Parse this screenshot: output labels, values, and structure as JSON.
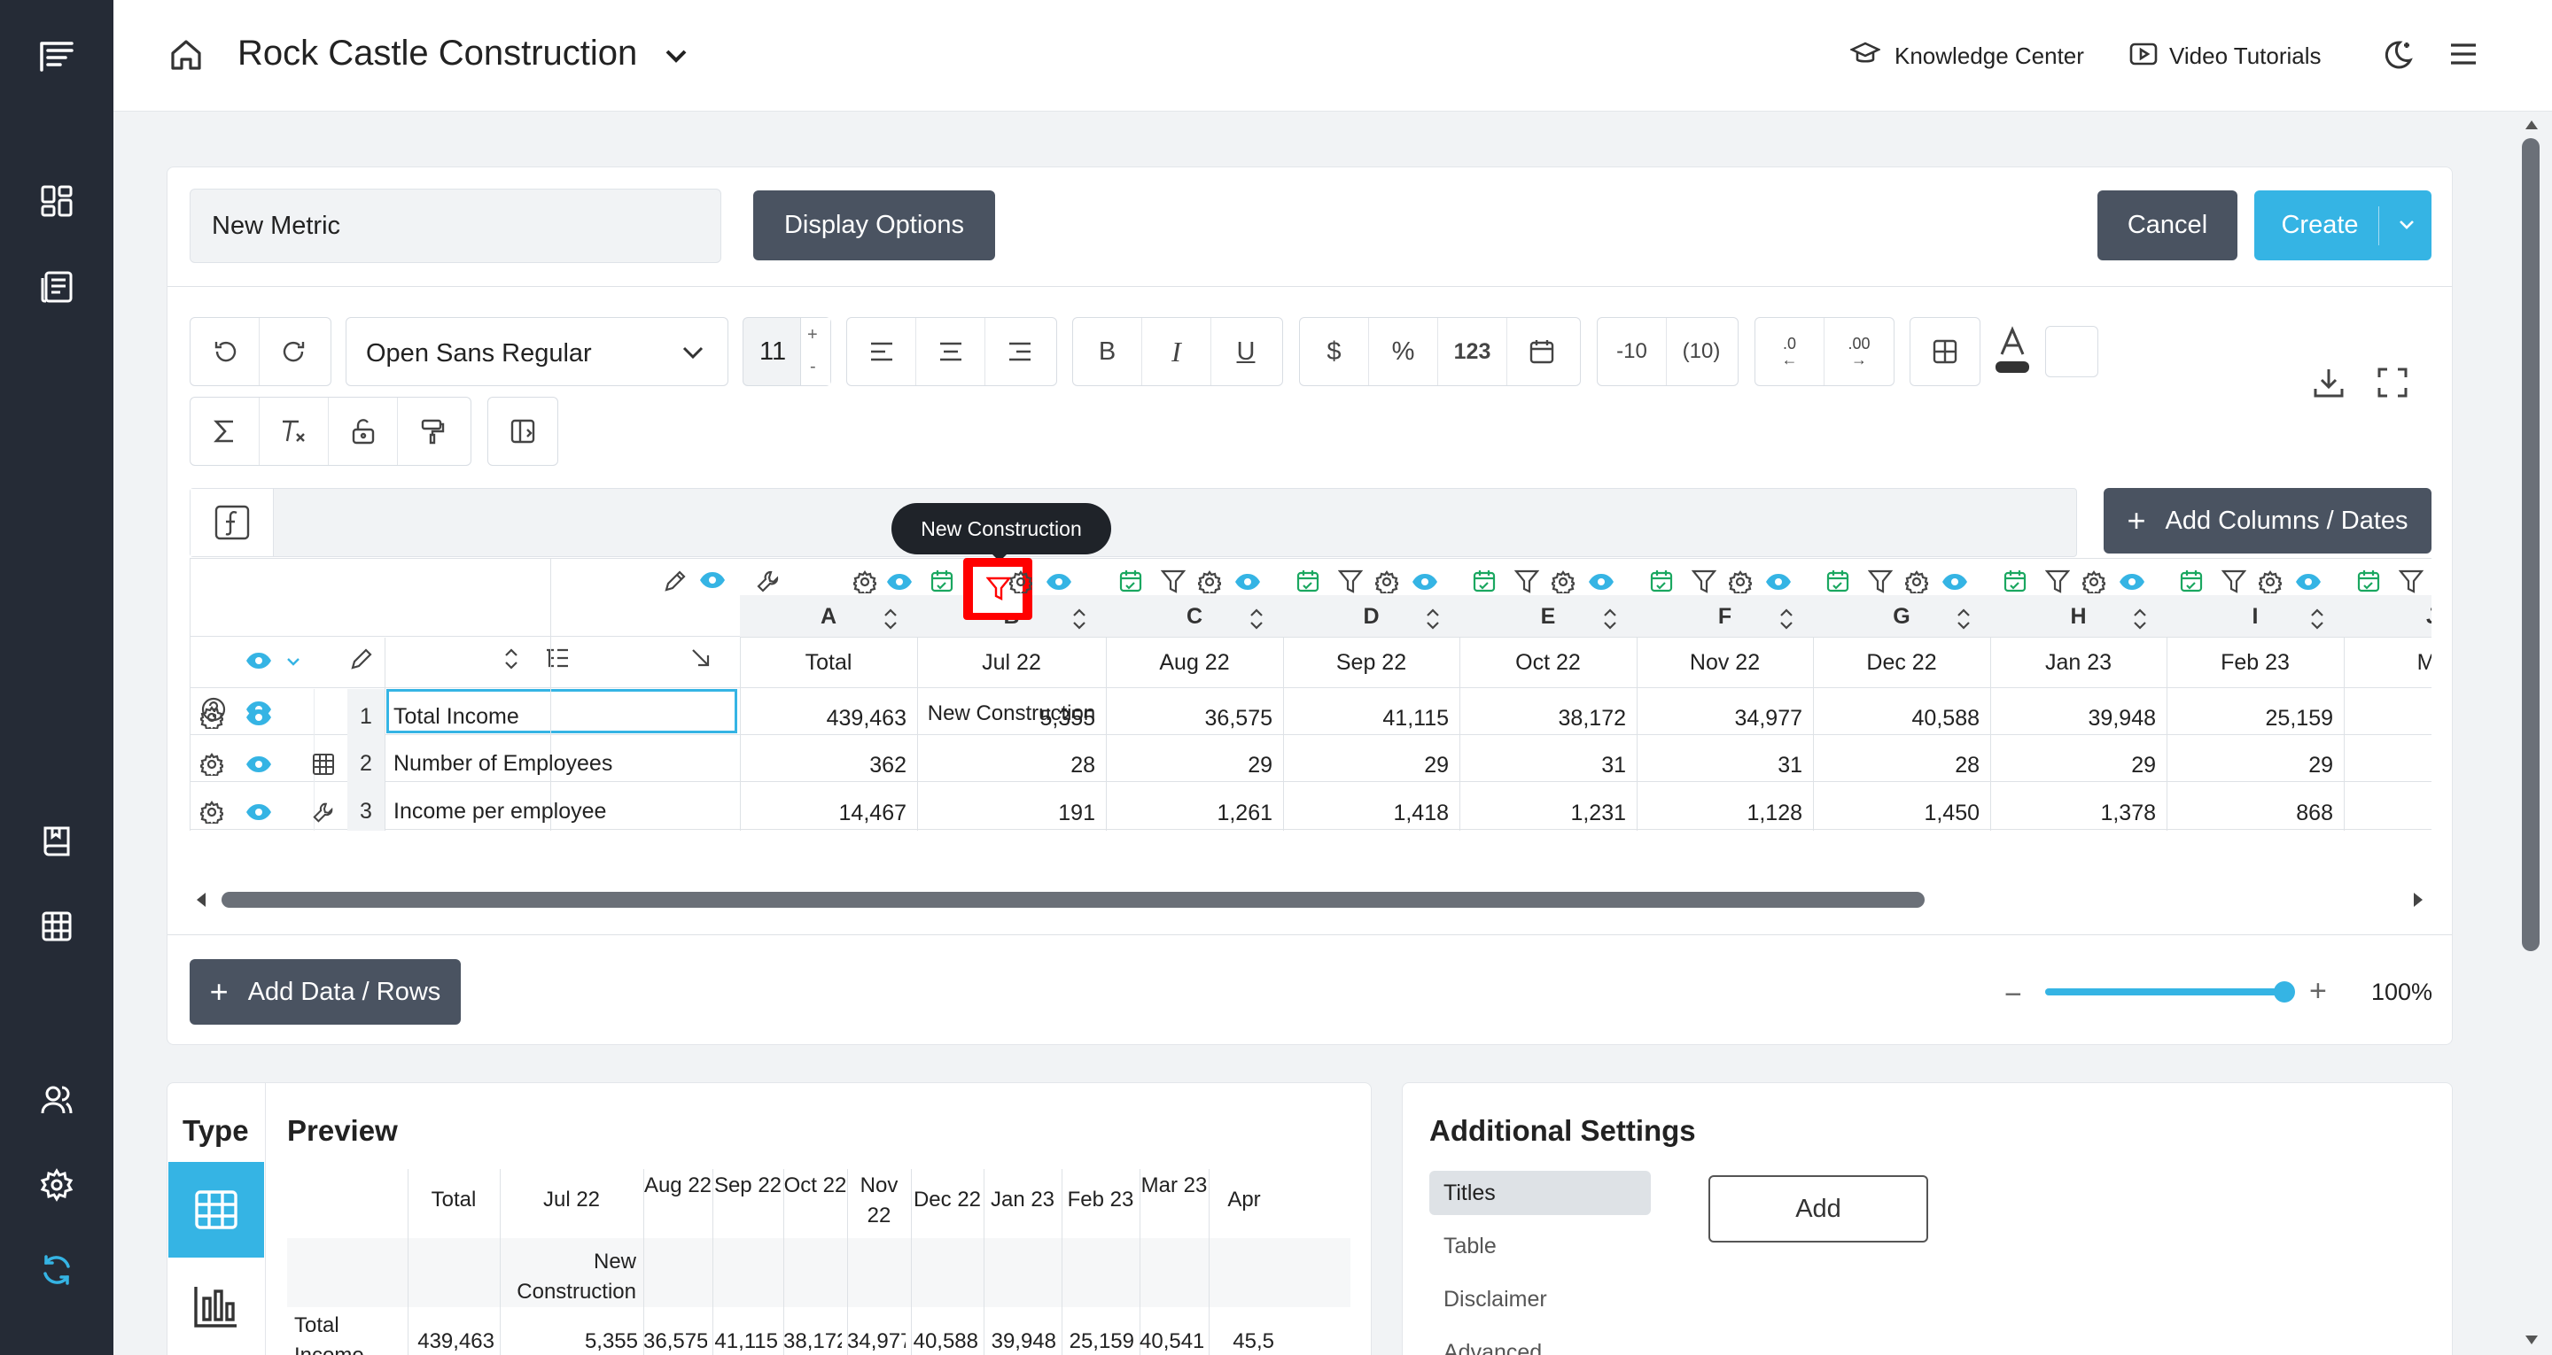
{
  "app": {
    "company_name": "Rock Castle Construction"
  },
  "header": {
    "knowledge_center": "Knowledge Center",
    "video_tutorials": "Video Tutorials"
  },
  "editor": {
    "metric_name": "New Metric",
    "display_options": "Display Options",
    "cancel": "Cancel",
    "create": "Create",
    "font_family": "Open Sans Regular",
    "font_size": "11",
    "size_up": "+",
    "size_down": "-",
    "fmt_bold": "B",
    "fmt_italic": "I",
    "fmt_underline": "U",
    "fmt_currency": "$",
    "fmt_percent": "%",
    "fmt_number": "123",
    "fmt_neg_minus": "-10",
    "fmt_neg_paren": "(10)",
    "fmt_dec_less": ".0",
    "fmt_dec_more": ".00",
    "add_columns": "Add Columns / Dates",
    "add_rows": "Add Data / Rows",
    "zoom": "100%",
    "zoom_level": 0.98,
    "tooltip": "New Construction"
  },
  "grid": {
    "columns": [
      {
        "letter": "A",
        "date": "Total",
        "filter": ""
      },
      {
        "letter": "B",
        "date": "Jul 22",
        "filter": "New Construction"
      },
      {
        "letter": "C",
        "date": "Aug 22",
        "filter": ""
      },
      {
        "letter": "D",
        "date": "Sep 22",
        "filter": ""
      },
      {
        "letter": "E",
        "date": "Oct 22",
        "filter": ""
      },
      {
        "letter": "F",
        "date": "Nov 22",
        "filter": ""
      },
      {
        "letter": "G",
        "date": "Dec 22",
        "filter": ""
      },
      {
        "letter": "H",
        "date": "Jan 23",
        "filter": ""
      },
      {
        "letter": "I",
        "date": "Feb 23",
        "filter": ""
      },
      {
        "letter": "J",
        "date": "Ma",
        "filter": ""
      }
    ],
    "rows": [
      {
        "num": "1",
        "label": "Total Income",
        "values": [
          "439,463",
          "5,355",
          "36,575",
          "41,115",
          "38,172",
          "34,977",
          "40,588",
          "39,948",
          "25,159"
        ]
      },
      {
        "num": "2",
        "label": "Number of Employees",
        "values": [
          "362",
          "28",
          "29",
          "29",
          "31",
          "31",
          "28",
          "29",
          "29"
        ]
      },
      {
        "num": "3",
        "label": "Income per employee",
        "values": [
          "14,467",
          "191",
          "1,261",
          "1,418",
          "1,231",
          "1,128",
          "1,450",
          "1,378",
          "868"
        ]
      }
    ]
  },
  "type_panel": {
    "title": "Type"
  },
  "preview": {
    "title": "Preview",
    "headers": [
      "Total",
      "Jul 22",
      "Aug 22",
      "Sep 22",
      "Oct 22",
      "Nov 22",
      "Dec 22",
      "Jan 23",
      "Feb 23",
      "Mar 23",
      "Apr"
    ],
    "filter_row": [
      "",
      "New Construction"
    ],
    "row_label": "Total Income",
    "row_values": [
      "439,463",
      "5,355",
      "36,575",
      "41,115",
      "38,172",
      "34,977",
      "40,588",
      "39,948",
      "25,159",
      "40,541",
      "45,5"
    ]
  },
  "settings": {
    "title": "Additional Settings",
    "items": [
      "Titles",
      "Table",
      "Disclaimer",
      "Advanced"
    ],
    "add": "Add"
  },
  "colors": {
    "accent": "#35b4e4",
    "dark": "#4a5361",
    "sidebar": "#252b36",
    "highlight": "#ff0000",
    "green": "#1aa760"
  }
}
